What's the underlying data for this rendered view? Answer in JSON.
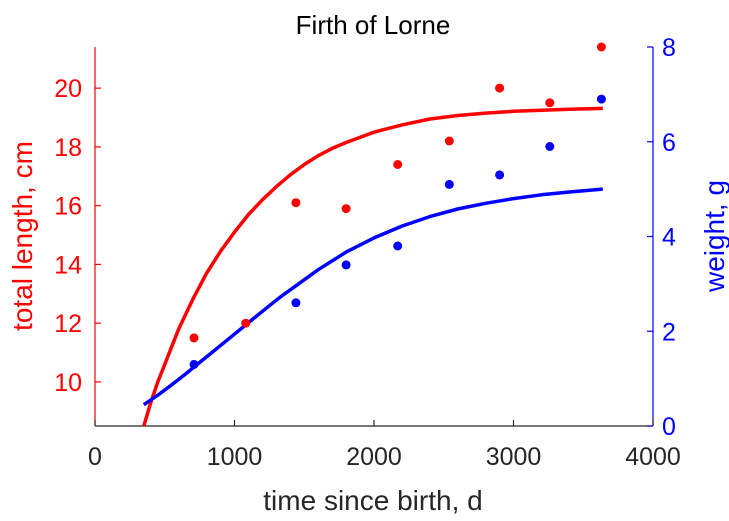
{
  "chart_data": {
    "type": "scatter",
    "title": "Firth of Lorne",
    "xlabel": "time since birth, d",
    "ylabel_left": "total length, cm",
    "ylabel_right": "weight, g",
    "xlim": [
      0,
      4000
    ],
    "ylim_left": [
      8.5,
      21.4
    ],
    "ylim_right": [
      0,
      8
    ],
    "x_ticks": [
      0,
      1000,
      2000,
      3000,
      4000
    ],
    "y_ticks_left": [
      10,
      12,
      14,
      16,
      18,
      20
    ],
    "y_ticks_right": [
      0,
      2,
      4,
      6,
      8
    ],
    "grid": false,
    "colors": {
      "length": "#ff0000",
      "weight": "#0000ff",
      "axis_bottom": "#262626"
    },
    "series": [
      {
        "axis": "left",
        "points": [
          {
            "x": 710,
            "y": 11.5
          },
          {
            "x": 1080,
            "y": 12.0
          },
          {
            "x": 1440,
            "y": 16.1
          },
          {
            "x": 1800,
            "y": 15.9
          },
          {
            "x": 2170,
            "y": 17.4
          },
          {
            "x": 2540,
            "y": 18.2
          },
          {
            "x": 2900,
            "y": 20.0
          },
          {
            "x": 3260,
            "y": 19.5
          },
          {
            "x": 3630,
            "y": 21.4
          }
        ],
        "fit": {
          "x": [
            350,
            400,
            450,
            500,
            550,
            600,
            700,
            800,
            900,
            1000,
            1100,
            1200,
            1300,
            1400,
            1500,
            1600,
            1700,
            1800,
            2000,
            2200,
            2400,
            2600,
            2800,
            3000,
            3200,
            3400,
            3640
          ],
          "y": [
            8.5,
            9.3,
            10.0,
            10.6,
            11.2,
            11.8,
            12.8,
            13.7,
            14.45,
            15.1,
            15.7,
            16.2,
            16.65,
            17.05,
            17.4,
            17.7,
            17.95,
            18.15,
            18.5,
            18.75,
            18.95,
            19.07,
            19.15,
            19.21,
            19.25,
            19.28,
            19.31
          ]
        }
      },
      {
        "axis": "right",
        "points": [
          {
            "x": 710,
            "y": 1.3
          },
          {
            "x": 1440,
            "y": 2.6
          },
          {
            "x": 1800,
            "y": 3.4
          },
          {
            "x": 2170,
            "y": 3.8
          },
          {
            "x": 2540,
            "y": 5.1
          },
          {
            "x": 2900,
            "y": 5.3
          },
          {
            "x": 3260,
            "y": 5.9
          },
          {
            "x": 3630,
            "y": 6.9
          }
        ],
        "fit": {
          "x": [
            350,
            450,
            550,
            650,
            750,
            850,
            950,
            1050,
            1150,
            1250,
            1350,
            1450,
            1600,
            1800,
            2000,
            2200,
            2400,
            2600,
            2800,
            3000,
            3200,
            3400,
            3640
          ],
          "y": [
            0.45,
            0.65,
            0.87,
            1.1,
            1.34,
            1.58,
            1.82,
            2.06,
            2.3,
            2.54,
            2.77,
            2.98,
            3.3,
            3.67,
            3.97,
            4.22,
            4.42,
            4.58,
            4.7,
            4.8,
            4.88,
            4.94,
            5.0
          ]
        }
      }
    ]
  }
}
